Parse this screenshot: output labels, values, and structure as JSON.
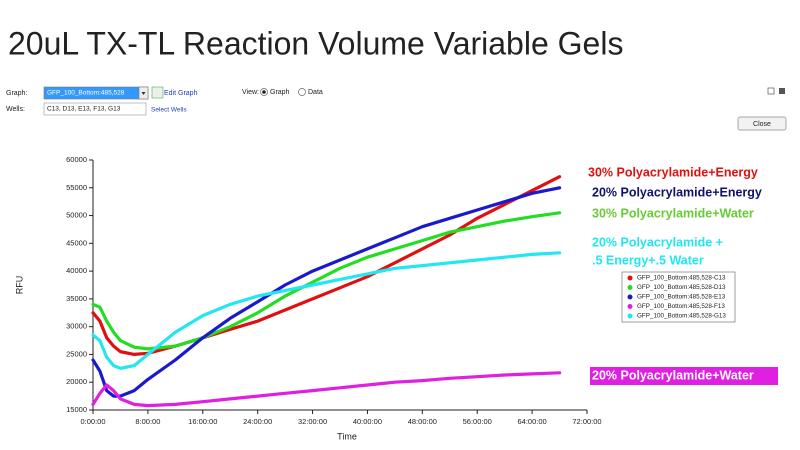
{
  "slide_title": "20uL TX-TL Reaction Volume Variable Gels",
  "toolbar": {
    "graph_label": "Graph:",
    "graph_select": "GFP_100_Bottom:485,528",
    "edit_graph": "Edit Graph",
    "view_label": "View:",
    "view_graph": "Graph",
    "view_data": "Data",
    "wells_label": "Wells:",
    "wells_value": "C13, D13, E13, F13, G13",
    "select_wells": "Select Wells",
    "close": "Close"
  },
  "chart_data": {
    "type": "line",
    "x_label": "Time",
    "y_label": "RFU",
    "x": [
      0,
      1,
      2,
      3,
      4,
      6,
      8,
      12,
      16,
      20,
      24,
      28,
      32,
      36,
      40,
      44,
      48,
      52,
      56,
      60,
      64,
      68
    ],
    "xlim": [
      0,
      72
    ],
    "xticks": [
      {
        "value": 0,
        "label": "0:00:00"
      },
      {
        "value": 8,
        "label": "8:00:00"
      },
      {
        "value": 16,
        "label": "16:00:00"
      },
      {
        "value": 24,
        "label": "24:00:00"
      },
      {
        "value": 32,
        "label": "32:00:00"
      },
      {
        "value": 40,
        "label": "40:00:00"
      },
      {
        "value": 48,
        "label": "48:00:00"
      },
      {
        "value": 56,
        "label": "56:00:00"
      },
      {
        "value": 64,
        "label": "64:00:00"
      },
      {
        "value": 72,
        "label": "72:00:00"
      }
    ],
    "ylim": [
      15000,
      60000
    ],
    "yticks": [
      15000,
      20000,
      25000,
      30000,
      35000,
      40000,
      45000,
      50000,
      55000,
      60000
    ],
    "series": [
      {
        "name": "GFP_100_Bottom:485,528-C13",
        "color": "#e01010",
        "values": [
          32500,
          31000,
          28000,
          26500,
          25500,
          25000,
          25200,
          26500,
          28000,
          29500,
          31000,
          33000,
          35000,
          37000,
          39000,
          41500,
          44000,
          46500,
          49500,
          52000,
          54500,
          57000
        ]
      },
      {
        "name": "GFP_100_Bottom:485,528-D13",
        "color": "#22dd22",
        "values": [
          34000,
          33500,
          31000,
          29000,
          27500,
          26300,
          26000,
          26500,
          28000,
          30000,
          32500,
          35500,
          38000,
          40500,
          42500,
          44000,
          45500,
          47000,
          48000,
          49000,
          49800,
          50500
        ]
      },
      {
        "name": "GFP_100_Bottom:485,528-E13",
        "color": "#1a1acc",
        "values": [
          24000,
          22000,
          18500,
          17500,
          17500,
          18500,
          20500,
          24000,
          28000,
          31500,
          34500,
          37500,
          40000,
          42000,
          44000,
          46000,
          48000,
          49500,
          51000,
          52500,
          54000,
          55000
        ]
      },
      {
        "name": "GFP_100_Bottom:485,528-F13",
        "color": "#e020e0",
        "values": [
          16000,
          18000,
          19500,
          18500,
          17000,
          16000,
          15800,
          16000,
          16500,
          17000,
          17500,
          18000,
          18500,
          19000,
          19500,
          20000,
          20300,
          20700,
          21000,
          21300,
          21500,
          21700
        ]
      },
      {
        "name": "GFP_100_Bottom:485,528-G13",
        "color": "#22e6f0",
        "values": [
          28500,
          27500,
          24500,
          23000,
          22500,
          23000,
          25000,
          29000,
          32000,
          34000,
          35500,
          36500,
          37500,
          38500,
          39500,
          40500,
          41000,
          41500,
          42000,
          42500,
          43000,
          43300
        ]
      }
    ],
    "annotations": [
      {
        "lines": [
          "30% Polyacrylamide+Energy"
        ],
        "color": "#e01010"
      },
      {
        "lines": [
          "20% Polyacrylamide+Energy"
        ],
        "color": "#10106e"
      },
      {
        "lines": [
          "30% Polyacrylamide+Water"
        ],
        "color": "#66cc33"
      },
      {
        "lines": [
          "20% Polyacrylamide +",
          ".5 Energy+.5 Water"
        ],
        "color": "#22e6f0"
      },
      {
        "lines": [
          "20% Polyacrylamide+Water"
        ],
        "color": "#ffffff",
        "background": "#e020e0"
      }
    ]
  }
}
